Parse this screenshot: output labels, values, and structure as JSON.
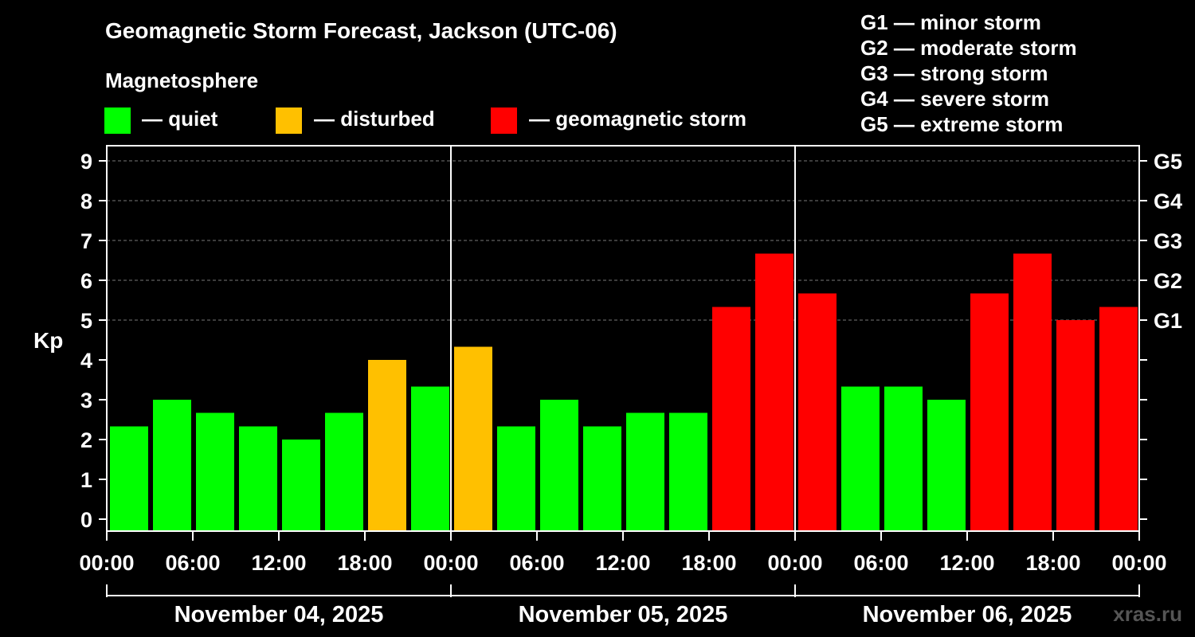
{
  "chart_data": {
    "type": "bar",
    "title": "Geomagnetic Storm Forecast, Jackson (UTC-06)",
    "legend_title": "Magnetosphere",
    "legend": [
      {
        "key": "quiet",
        "label": "— quiet",
        "color": "#00ff00"
      },
      {
        "key": "disturbed",
        "label": "— disturbed",
        "color": "#ffc000"
      },
      {
        "key": "storm",
        "label": "— geomagnetic storm",
        "color": "#ff0000"
      }
    ],
    "g_scale": [
      {
        "level": "G1",
        "text": "G1 — minor storm",
        "kp": 5
      },
      {
        "level": "G2",
        "text": "G2 — moderate storm",
        "kp": 6
      },
      {
        "level": "G3",
        "text": "G3 — strong storm",
        "kp": 7
      },
      {
        "level": "G4",
        "text": "G4 — severe storm",
        "kp": 8
      },
      {
        "level": "G5",
        "text": "G5 — extreme storm",
        "kp": 9
      }
    ],
    "ylabel": "Kp",
    "ylim": [
      0,
      9
    ],
    "yticks": [
      "0",
      "1",
      "2",
      "3",
      "4",
      "5",
      "6",
      "7",
      "8",
      "9"
    ],
    "xticks": [
      "00:00",
      "06:00",
      "12:00",
      "18:00",
      "00:00",
      "06:00",
      "12:00",
      "18:00",
      "00:00",
      "06:00",
      "12:00",
      "18:00",
      "00:00"
    ],
    "days": [
      "November 04, 2025",
      "November 05, 2025",
      "November 06, 2025"
    ],
    "values": [
      2.33,
      3.0,
      2.67,
      2.33,
      2.0,
      2.67,
      4.0,
      3.33,
      4.33,
      2.33,
      3.0,
      2.33,
      2.67,
      2.67,
      5.33,
      6.67,
      5.67,
      3.33,
      3.33,
      3.0,
      5.67,
      6.67,
      5.0,
      5.33
    ],
    "categories": [
      "quiet",
      "quiet",
      "quiet",
      "quiet",
      "quiet",
      "quiet",
      "disturbed",
      "quiet",
      "disturbed",
      "quiet",
      "quiet",
      "quiet",
      "quiet",
      "quiet",
      "storm",
      "storm",
      "storm",
      "quiet",
      "quiet",
      "quiet",
      "storm",
      "storm",
      "storm",
      "storm"
    ],
    "grid": true
  },
  "watermark": "xras.ru"
}
